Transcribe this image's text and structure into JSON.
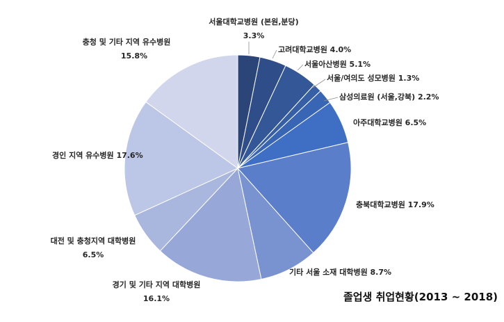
{
  "chart_data": {
    "type": "pie",
    "title": "졸업생 취업현황(2013 ~ 2018)",
    "slices": [
      {
        "label": "서울대학교병원 (본원,분당)",
        "value": 3.3,
        "value_label": "3.3%",
        "color": "#2b4578"
      },
      {
        "label": "고려대학교병원",
        "value": 4.0,
        "value_label": "4.0%",
        "color": "#2f4d88"
      },
      {
        "label": "서울아산병원",
        "value": 5.1,
        "value_label": "5.1%",
        "color": "#335797"
      },
      {
        "label": "서울/여의도 성모병원",
        "value": 1.3,
        "value_label": "1.3%",
        "color": "#365fa6"
      },
      {
        "label": "삼성의료원 (서울,강북)",
        "value": 2.2,
        "value_label": "2.2%",
        "color": "#3966b4"
      },
      {
        "label": "아주대학교병원",
        "value": 6.5,
        "value_label": "6.5%",
        "color": "#3e6fc4"
      },
      {
        "label": "충북대학교병원",
        "value": 17.9,
        "value_label": "17.9%",
        "color": "#5b7ecb"
      },
      {
        "label": "기타 서울 소재 대학병원",
        "value": 8.7,
        "value_label": "8.7%",
        "color": "#7992d0"
      },
      {
        "label": "경기 및 기타 지역 대학병원",
        "value": 16.1,
        "value_label": "16.1%",
        "color": "#97a8d8"
      },
      {
        "label": "대전 및 충청지역 대학병원",
        "value": 6.5,
        "value_label": "6.5%",
        "color": "#a9b6de"
      },
      {
        "label": "경인 지역 유수병원",
        "value": 17.6,
        "value_label": "17.6%",
        "color": "#bcc6e6"
      },
      {
        "label": "충청 및 기타 지역 유수병원",
        "value": 15.8,
        "value_label": "15.8%",
        "color": "#d1d6ec"
      }
    ]
  }
}
